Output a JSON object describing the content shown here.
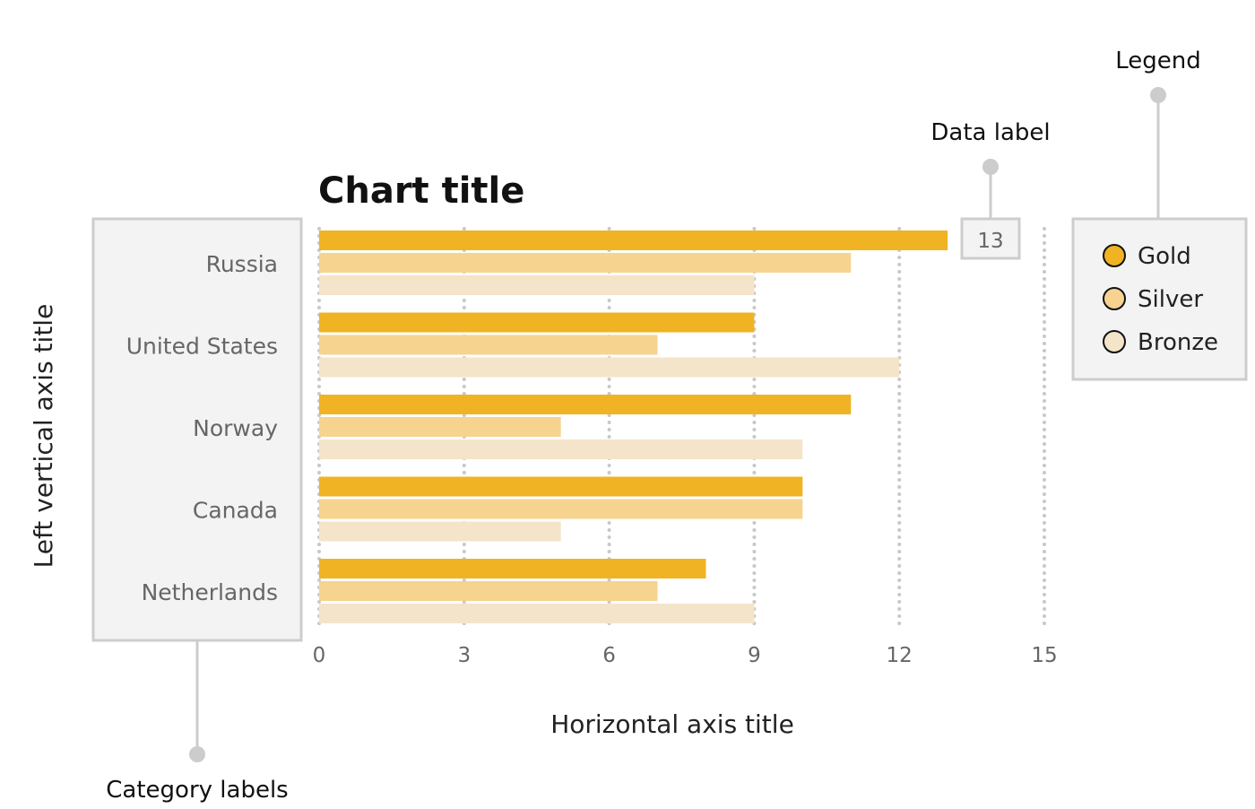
{
  "chart_data": {
    "type": "bar",
    "orientation": "horizontal",
    "title": "Chart title",
    "xlabel": "Horizontal axis title",
    "ylabel": "Left vertical axis title",
    "categories": [
      "Russia",
      "United States",
      "Norway",
      "Canada",
      "Netherlands"
    ],
    "series": [
      {
        "name": "Gold",
        "values": [
          13,
          9,
          11,
          10,
          8
        ],
        "color": "#F0B323"
      },
      {
        "name": "Silver",
        "values": [
          11,
          7,
          5,
          10,
          7
        ],
        "color": "#F7D390"
      },
      {
        "name": "Bronze",
        "values": [
          9,
          12,
          10,
          5,
          9
        ],
        "color": "#F4E4C9"
      }
    ],
    "xlim": [
      0,
      15
    ],
    "xticks": [
      0,
      3,
      6,
      9,
      12,
      15
    ],
    "grid": true,
    "grid_style": "dotted",
    "legend_position": "right",
    "data_labels": [
      {
        "series": "Gold",
        "category": "Russia",
        "text": "13"
      }
    ]
  },
  "annotations": {
    "legend": "Legend",
    "data_label": "Data label",
    "category_labels": "Category labels"
  },
  "colors": {
    "annotation_gray": "#CCCCCC",
    "box_fill": "#F3F3F3",
    "box_border": "#CDCDCD",
    "gridline": "#C8C8C8",
    "category_text": "#666666"
  }
}
